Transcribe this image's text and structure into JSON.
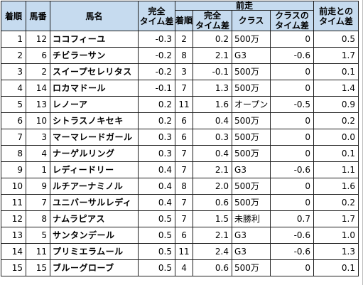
{
  "headers": {
    "rank": "着順",
    "post": "馬番",
    "horse": "馬名",
    "diff_line1": "完全",
    "diff_line2": "タイム差",
    "prev": "前走",
    "prev_rank": "着順",
    "prev_diff_line1": "完全",
    "prev_diff_line2": "タイム差",
    "class": "クラス",
    "class_diff_line1": "クラスの",
    "class_diff_line2": "タイム差",
    "vs_prev_line1": "前走との",
    "vs_prev_line2": "タイム差"
  },
  "rows": [
    {
      "rank": "1",
      "post": "12",
      "horse": "ココフィーユ",
      "diff": "-0.3",
      "prev_rank": "2",
      "prev_diff": "0.2",
      "class": "500万",
      "class_diff": "0",
      "vs_prev": "0.5"
    },
    {
      "rank": "2",
      "post": "6",
      "horse": "チビラーサン",
      "diff": "-0.2",
      "prev_rank": "8",
      "prev_diff": "2.1",
      "class": "G3",
      "class_diff": "-0.6",
      "vs_prev": "1.7"
    },
    {
      "rank": "3",
      "post": "2",
      "horse": "スイープセレリタス",
      "diff": "-0.2",
      "prev_rank": "3",
      "prev_diff": "-0.1",
      "class": "500万",
      "class_diff": "0",
      "vs_prev": "0.1"
    },
    {
      "rank": "4",
      "post": "14",
      "horse": "ロカマドール",
      "diff": "-0.1",
      "prev_rank": "7",
      "prev_diff": "1.3",
      "class": "500万",
      "class_diff": "0",
      "vs_prev": "1.4"
    },
    {
      "rank": "5",
      "post": "13",
      "horse": "レノーア",
      "diff": "0.2",
      "prev_rank": "11",
      "prev_diff": "1.6",
      "class": "オープン",
      "class_diff": "-0.5",
      "vs_prev": "0.9"
    },
    {
      "rank": "6",
      "post": "10",
      "horse": "シトラスノキセキ",
      "diff": "0.2",
      "prev_rank": "6",
      "prev_diff": "0.4",
      "class": "500万",
      "class_diff": "0",
      "vs_prev": "0.2"
    },
    {
      "rank": "7",
      "post": "3",
      "horse": "マーマレードガール",
      "diff": "0.3",
      "prev_rank": "6",
      "prev_diff": "0.3",
      "class": "500万",
      "class_diff": "0",
      "vs_prev": "0.0"
    },
    {
      "rank": "8",
      "post": "4",
      "horse": "ナーゲルリング",
      "diff": "0.3",
      "prev_rank": "7",
      "prev_diff": "0.4",
      "class": "500万",
      "class_diff": "0",
      "vs_prev": "0.1"
    },
    {
      "rank": "9",
      "post": "1",
      "horse": "レディードリー",
      "diff": "0.4",
      "prev_rank": "7",
      "prev_diff": "2.1",
      "class": "G3",
      "class_diff": "-0.6",
      "vs_prev": "1.1"
    },
    {
      "rank": "10",
      "post": "9",
      "horse": "ルチアーナミノル",
      "diff": "0.4",
      "prev_rank": "8",
      "prev_diff": "2.0",
      "class": "500万",
      "class_diff": "0",
      "vs_prev": "1.6"
    },
    {
      "rank": "11",
      "post": "7",
      "horse": "ユニバーサルレディ",
      "diff": "0.4",
      "prev_rank": "7",
      "prev_diff": "0.6",
      "class": "500万",
      "class_diff": "0",
      "vs_prev": "0.2"
    },
    {
      "rank": "12",
      "post": "8",
      "horse": "ナムラピアス",
      "diff": "0.5",
      "prev_rank": "7",
      "prev_diff": "1.5",
      "class": "未勝利",
      "class_diff": "0.7",
      "vs_prev": "1.7"
    },
    {
      "rank": "13",
      "post": "5",
      "horse": "サンタンデール",
      "diff": "0.5",
      "prev_rank": "6",
      "prev_diff": "2.1",
      "class": "G3",
      "class_diff": "-0.6",
      "vs_prev": "1.0"
    },
    {
      "rank": "14",
      "post": "11",
      "horse": "プリミエラムール",
      "diff": "0.5",
      "prev_rank": "11",
      "prev_diff": "2.4",
      "class": "G3",
      "class_diff": "-0.6",
      "vs_prev": "1.3"
    },
    {
      "rank": "15",
      "post": "15",
      "horse": "ブルーグローブ",
      "diff": "0.5",
      "prev_rank": "4",
      "prev_diff": "0.6",
      "class": "500万",
      "class_diff": "0",
      "vs_prev": "0.1"
    }
  ],
  "colors": {
    "header_bg": "#c6dbef",
    "emphasis_red": "#e8202a",
    "border": "#1e1e1e"
  }
}
